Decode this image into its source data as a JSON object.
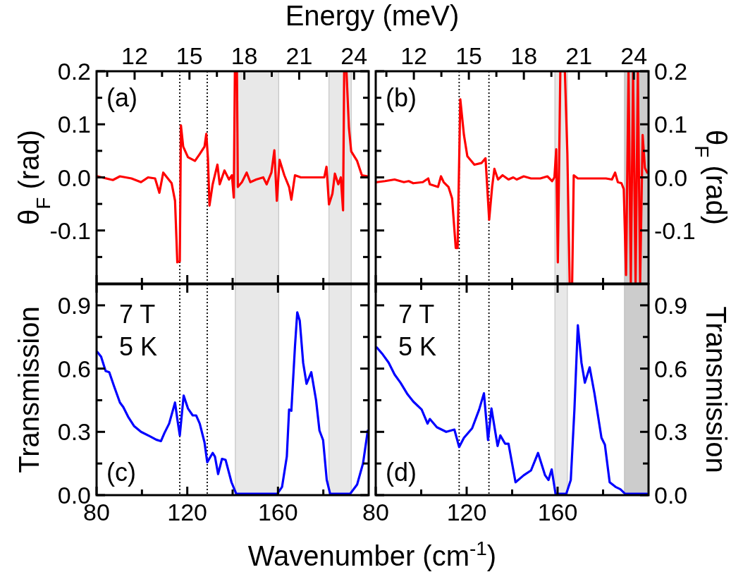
{
  "chart_data": [
    {
      "type": "line",
      "x2label": "Energy (meV)",
      "ylabel": "θ$_{F}$ (rad)",
      "annotations": [
        "(a)"
      ],
      "tick_labels": "y",
      "line_style": "solid",
      "xlim": [
        80,
        200
      ],
      "xticks": [
        80,
        {
          "value": 100,
          "label": null
        },
        120,
        {
          "value": 140,
          "label": null
        },
        160,
        {
          "value": 180,
          "label": null
        }
      ],
      "x2lim": [
        9.92,
        24.8
      ],
      "x2ticks": [
        {
          "value": 10.5,
          "label": null
        },
        12,
        {
          "value": 13.5,
          "label": null
        },
        15,
        {
          "value": 16.5,
          "label": null
        },
        18,
        {
          "value": 19.5,
          "label": null
        },
        21,
        {
          "value": 22.5,
          "label": null
        },
        24
      ],
      "ylim": [
        -0.2,
        0.2
      ],
      "yticks": [
        {
          "value": 0.2,
          "label": "0.2"
        },
        {
          "value": 0.15,
          "label": null
        },
        {
          "value": 0.1,
          "label": "0.1"
        },
        {
          "value": 0.05,
          "label": null
        },
        {
          "value": 0,
          "label": "0.0"
        },
        {
          "value": -0.05,
          "label": null
        },
        {
          "value": -0.1,
          "label": "-0.1"
        },
        {
          "value": -0.15,
          "label": null
        }
      ],
      "bands": [
        {
          "axis": "x",
          "from": 141.2,
          "to": 160.3,
          "color": "#e8e8e8"
        },
        {
          "axis": "x",
          "from": 182.5,
          "to": 192.3,
          "color": "#e8e8e8"
        }
      ],
      "ref_lines": [
        {
          "axis": "x",
          "value": 116.7,
          "line_style": "dotted",
          "color": "#000000"
        },
        {
          "axis": "x",
          "value": 128.8,
          "line_style": "dotted",
          "color": "#000000"
        }
      ],
      "series": [
        {
          "color": "#ff0000",
          "x": [
            80.4,
            87.2,
            90.3,
            95.4,
            99.6,
            102.7,
            105.8,
            107.7,
            109.4,
            113.1,
            114.6,
            115.6,
            116.7,
            117.2,
            118.2,
            120.3,
            123.4,
            125.5,
            127.6,
            128.4,
            129.1,
            129.8,
            131.2,
            133.3,
            134.3,
            136.4,
            138.4,
            139.7,
            140.5,
            141.0,
            141.9,
            142.3,
            144.1,
            146.2,
            147.8,
            150.4,
            153.5,
            155.0,
            157.1,
            158.4,
            159.5,
            160.7,
            162.8,
            164.9,
            165.9,
            167.5,
            170.1,
            180.4,
            181.4,
            182.5,
            184.0,
            185.1,
            186.6,
            187.7,
            188.7,
            189.2,
            190.2,
            191.3,
            192.3,
            194.9,
            197.0,
            199.6
          ],
          "values": [
            0.002,
            -0.005,
            0.002,
            -0.002,
            -0.009,
            0,
            -0.002,
            -0.029,
            0.009,
            -0.011,
            -0.044,
            -0.16,
            -0.158,
            0.098,
            0.058,
            0.038,
            0.031,
            0.044,
            0.058,
            0.082,
            0.036,
            -0.053,
            -0.013,
            0.024,
            -0.013,
            0.013,
            -0.004,
            0.004,
            -0.038,
            0.2,
            0.2,
            -0.018,
            -0.009,
            0.009,
            -0.009,
            -0.004,
            0,
            -0.013,
            0.009,
            0.051,
            -0.044,
            0.033,
            0.004,
            -0.018,
            -0.042,
            0.004,
            0,
            0,
            0.02,
            -0.051,
            -0.031,
            0.007,
            -0.013,
            0,
            -0.062,
            0.2,
            0.2,
            0.093,
            0.049,
            0.031,
            0.004,
            0.002
          ]
        }
      ]
    },
    {
      "type": "line",
      "y2label": "θ$_{F}$ (rad)",
      "annotations": [
        "(b)"
      ],
      "tick_labels": "y",
      "line_style": "solid",
      "xlim": [
        80,
        200
      ],
      "xticks": [
        80,
        {
          "value": 100,
          "label": null
        },
        120,
        {
          "value": 140,
          "label": null
        },
        160,
        {
          "value": 180,
          "label": null
        }
      ],
      "x2lim": [
        9.92,
        24.8
      ],
      "x2ticks": [
        {
          "value": 10.5,
          "label": null
        },
        12,
        {
          "value": 13.5,
          "label": null
        },
        15,
        {
          "value": 16.5,
          "label": null
        },
        18,
        {
          "value": 19.5,
          "label": null
        },
        21,
        {
          "value": 22.5,
          "label": null
        },
        24
      ],
      "y2lim": [
        -0.2,
        0.2
      ],
      "y2ticks": [
        {
          "value": 0.2,
          "label": "0.2"
        },
        {
          "value": 0.15,
          "label": null
        },
        {
          "value": 0.1,
          "label": "0.1"
        },
        {
          "value": 0.05,
          "label": null
        },
        {
          "value": 0,
          "label": "0.0"
        },
        {
          "value": -0.05,
          "label": null
        },
        {
          "value": -0.1,
          "label": "-0.1"
        },
        {
          "value": -0.15,
          "label": null
        }
      ],
      "bands": [
        {
          "axis": "x",
          "from": 158.8,
          "to": 164.3,
          "color": "#e8e8e8"
        },
        {
          "axis": "x",
          "from": 189.4,
          "to": 200,
          "color": "#cccccc"
        }
      ],
      "ref_lines": [
        {
          "axis": "x",
          "value": 116.7,
          "line_style": "dotted",
          "color": "#000000"
        },
        {
          "axis": "x",
          "value": 129.8,
          "line_style": "dotted",
          "color": "#000000"
        }
      ],
      "series": [
        {
          "color": "#ff0000",
          "axis": "y2",
          "x": [
            80.5,
            84.1,
            88.3,
            92.4,
            94.5,
            96.5,
            100.7,
            103.1,
            103.8,
            107.4,
            108.7,
            109.9,
            112.0,
            113.6,
            115.2,
            116.0,
            117.2,
            118.8,
            120.3,
            123.4,
            126.5,
            128.3,
            129.9,
            131.2,
            132.2,
            133.8,
            135.8,
            138.4,
            140.5,
            142.0,
            145.1,
            148.3,
            152.4,
            155.5,
            157.6,
            158.6,
            159.4,
            160.1,
            161.2,
            163.2,
            164.3,
            165.3,
            166.4,
            167.1,
            168.9,
            176.2,
            181.3,
            183.9,
            185.3,
            186.5,
            188.1,
            189.1,
            190.1,
            191.2,
            192.2,
            193.2,
            194.3,
            195.3,
            196.3,
            197.4,
            198.4,
            199.4
          ],
          "values": [
            -0.009,
            -0.007,
            -0.004,
            -0.009,
            -0.007,
            -0.011,
            -0.009,
            -0.002,
            -0.013,
            -0.018,
            0.002,
            -0.009,
            -0.018,
            -0.04,
            -0.133,
            -0.133,
            0.147,
            0.08,
            0.04,
            0.024,
            0.027,
            0.036,
            -0.08,
            -0.018,
            0.016,
            -0.004,
            0.004,
            -0.004,
            0,
            -0.004,
            0.002,
            -0.002,
            -0.002,
            0.002,
            -0.007,
            0,
            0.053,
            -0.16,
            0.2,
            0.2,
            0.044,
            -0.2,
            -0.2,
            0.004,
            -0.002,
            -0.002,
            -0.002,
            -0.004,
            0.009,
            -0.009,
            -0.011,
            -0.022,
            -0.184,
            0.2,
            -0.2,
            0.2,
            -0.2,
            0.2,
            -0.2,
            0.08,
            0.018,
            0.009
          ]
        }
      ]
    },
    {
      "type": "line",
      "xlabel": "Wavenumber (cm$^{-1}$)",
      "ylabel": "Transmission",
      "annotations": [
        "7 T",
        "5 K",
        "(c)"
      ],
      "line_style": "solid",
      "xlim": [
        80,
        200
      ],
      "xticks": [
        80,
        {
          "value": 100,
          "label": null
        },
        120,
        {
          "value": 140,
          "label": null
        },
        160,
        {
          "value": 180,
          "label": null
        }
      ],
      "ylim": [
        0,
        1.0
      ],
      "yticks": [
        {
          "value": 0,
          "label": "0.0"
        },
        {
          "value": 0.15,
          "label": null
        },
        {
          "value": 0.3,
          "label": "0.3"
        },
        {
          "value": 0.45,
          "label": null
        },
        {
          "value": 0.6,
          "label": "0.6"
        },
        {
          "value": 0.75,
          "label": null
        },
        {
          "value": 0.9,
          "label": "0.9"
        }
      ],
      "bands": [
        {
          "axis": "x",
          "from": 141.2,
          "to": 160.3,
          "color": "#e8e8e8"
        },
        {
          "axis": "x",
          "from": 182.5,
          "to": 192.3,
          "color": "#e8e8e8"
        }
      ],
      "ref_lines": [
        {
          "axis": "x",
          "value": 116.7,
          "line_style": "dotted",
          "color": "#000000"
        },
        {
          "axis": "x",
          "value": 128.8,
          "line_style": "dotted",
          "color": "#000000"
        }
      ],
      "series": [
        {
          "color": "#0000ff",
          "x": [
            80.4,
            82.0,
            84.0,
            85.6,
            87.7,
            90.3,
            91.8,
            93.9,
            96.5,
            99.6,
            103.7,
            106.3,
            108.4,
            109.9,
            112.0,
            114.6,
            115.6,
            116.7,
            118.4,
            120.3,
            122.4,
            123.9,
            125.5,
            127.6,
            128.8,
            131.2,
            132.2,
            133.6,
            135.3,
            136.9,
            139.5,
            141.6,
            147.3,
            153.5,
            159.7,
            161.8,
            163.9,
            164.9,
            165.9,
            167.5,
            168.5,
            169.6,
            171.1,
            172.6,
            174.7,
            176.8,
            178.3,
            179.9,
            181.5,
            183.0,
            191.8,
            194.9,
            197.5,
            199.6
          ],
          "values": [
            0.678,
            0.656,
            0.589,
            0.583,
            0.517,
            0.439,
            0.417,
            0.372,
            0.328,
            0.3,
            0.278,
            0.263,
            0.256,
            0.294,
            0.339,
            0.439,
            0.361,
            0.283,
            0.472,
            0.411,
            0.378,
            0.378,
            0.339,
            0.25,
            0.156,
            0.2,
            0.183,
            0.1,
            0.172,
            0.167,
            0.061,
            0.006,
            0.006,
            0.006,
            0.006,
            0.039,
            0.183,
            0.406,
            0.4,
            0.706,
            0.867,
            0.828,
            0.628,
            0.528,
            0.583,
            0.45,
            0.306,
            0.261,
            0.072,
            0.006,
            0.006,
            0.05,
            0.15,
            0.306
          ]
        }
      ]
    },
    {
      "type": "line",
      "y2label": "Transmission",
      "annotations": [
        "7 T",
        "5 K",
        "(d)"
      ],
      "line_style": "solid",
      "xlim": [
        80,
        200
      ],
      "xticks": [
        80,
        {
          "value": 100,
          "label": null
        },
        120,
        {
          "value": 140,
          "label": null
        },
        160,
        {
          "value": 180,
          "label": null
        }
      ],
      "y2lim": [
        0,
        1.0
      ],
      "y2ticks": [
        {
          "value": 0,
          "label": "0.0"
        },
        {
          "value": 0.15,
          "label": null
        },
        {
          "value": 0.3,
          "label": "0.3"
        },
        {
          "value": 0.45,
          "label": null
        },
        {
          "value": 0.6,
          "label": "0.6"
        },
        {
          "value": 0.75,
          "label": null
        },
        {
          "value": 0.9,
          "label": "0.9"
        }
      ],
      "bands": [
        {
          "axis": "x",
          "from": 158.8,
          "to": 164.3,
          "color": "#e8e8e8"
        },
        {
          "axis": "x",
          "from": 189.4,
          "to": 200,
          "color": "#cccccc"
        }
      ],
      "ref_lines": [
        {
          "axis": "x",
          "value": 116.7,
          "line_style": "dotted",
          "color": "#000000"
        },
        {
          "axis": "x",
          "value": 129.8,
          "line_style": "dotted",
          "color": "#000000"
        }
      ],
      "series": [
        {
          "color": "#0000ff",
          "axis": "y2",
          "x": [
            80.5,
            83.1,
            85.7,
            88.3,
            90.9,
            94.0,
            96.5,
            100.2,
            102.8,
            103.8,
            106.9,
            111.0,
            114.6,
            116.7,
            118.8,
            122.4,
            125.5,
            127.6,
            129.4,
            130.9,
            133.6,
            134.8,
            136.9,
            138.4,
            141.5,
            145.1,
            148.3,
            151.4,
            154.5,
            156.0,
            157.4,
            159.1,
            163.8,
            165.8,
            167.4,
            168.9,
            170.5,
            172.0,
            174.1,
            176.2,
            179.3,
            180.8,
            182.9,
            185.5,
            187.6,
            189.7,
            199.4
          ],
          "values": [
            0.7,
            0.667,
            0.628,
            0.572,
            0.533,
            0.478,
            0.444,
            0.406,
            0.339,
            0.361,
            0.322,
            0.3,
            0.311,
            0.228,
            0.272,
            0.317,
            0.406,
            0.483,
            0.261,
            0.411,
            0.233,
            0.283,
            0.244,
            0.244,
            0.061,
            0.094,
            0.117,
            0.2,
            0.094,
            0.072,
            0.122,
            0.006,
            0.006,
            0.072,
            0.406,
            0.806,
            0.628,
            0.533,
            0.606,
            0.483,
            0.272,
            0.239,
            0.061,
            0.039,
            0.028,
            0.006,
            0.006
          ]
        }
      ]
    }
  ]
}
